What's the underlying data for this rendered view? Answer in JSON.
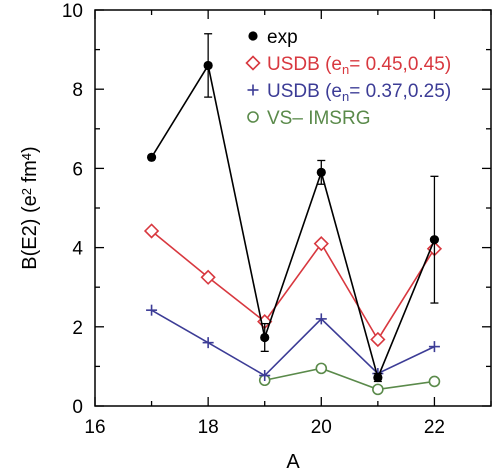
{
  "chart_data": {
    "type": "line",
    "xlabel": "A",
    "ylabel_parts": {
      "main": "B(E2) (e",
      "sup1": "2",
      "mid": " fm",
      "sup2": "4",
      "end": ")"
    },
    "xlim": [
      16,
      23
    ],
    "ylim": [
      0,
      10
    ],
    "xticks": [
      "16",
      "18",
      "20",
      "22"
    ],
    "yticks": [
      "0",
      "2",
      "4",
      "6",
      "8",
      "10"
    ],
    "grid": false,
    "legend_position": "top-right",
    "series": [
      {
        "name": "exp",
        "legend_parts": {
          "main": "exp"
        },
        "color": "#000000",
        "marker": "filled-circle",
        "x": [
          17,
          18,
          19,
          20,
          21,
          22
        ],
        "y": [
          6.28,
          8.6,
          1.73,
          5.9,
          0.72,
          4.2
        ],
        "yerr": [
          0,
          0.8,
          0.35,
          0.3,
          0.1,
          1.6
        ]
      },
      {
        "name": "USDB (en=0.45,0.45)",
        "legend_parts": {
          "main": "USDB (e",
          "sub": "n",
          "rest": "= 0.45,0.45)"
        },
        "color": "#d8383f",
        "marker": "open-diamond",
        "x": [
          17,
          18,
          19,
          20,
          21,
          22
        ],
        "y": [
          4.42,
          3.25,
          2.13,
          4.1,
          1.68,
          3.97
        ]
      },
      {
        "name": "USDB (en=0.37,0.25)",
        "legend_parts": {
          "main": "USDB (e",
          "sub": "n",
          "rest": "= 0.37,0.25)"
        },
        "color": "#3c3c96",
        "marker": "plus",
        "x": [
          17,
          18,
          19,
          20,
          21,
          22
        ],
        "y": [
          2.42,
          1.6,
          0.77,
          2.2,
          0.82,
          1.5
        ]
      },
      {
        "name": "VS-IMSRG",
        "legend_parts": {
          "main": "VS– IMSRG"
        },
        "color": "#5a8a4a",
        "marker": "open-circle",
        "x": [
          19,
          20,
          21,
          22
        ],
        "y": [
          0.65,
          0.95,
          0.42,
          0.62
        ]
      }
    ]
  }
}
